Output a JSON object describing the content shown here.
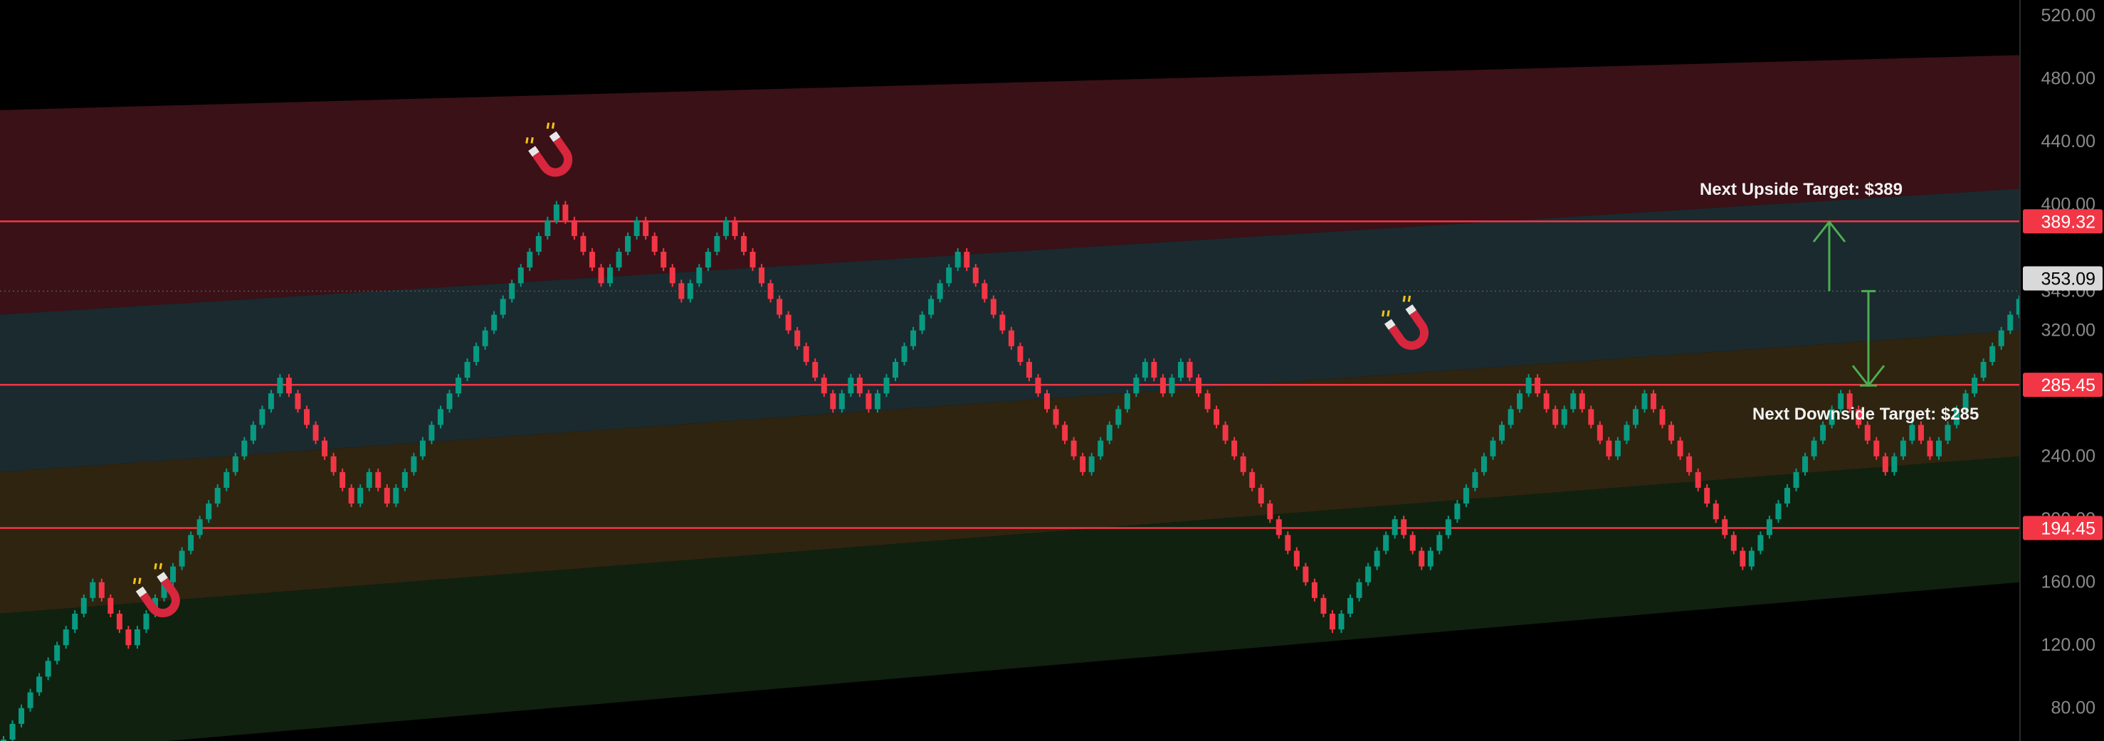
{
  "chart_data": {
    "type": "renko",
    "ylim": [
      60,
      530
    ],
    "y_ticks": [
      "80.00",
      "120.00",
      "160.00",
      "200.00",
      "240.00",
      "285.45",
      "320.00",
      "345.00",
      "400.00",
      "440.00",
      "480.00",
      "520.00"
    ],
    "brick_size": 10,
    "bricks": [
      {
        "dir": "up",
        "to": 60
      },
      {
        "dir": "up",
        "to": 70
      },
      {
        "dir": "up",
        "to": 80
      },
      {
        "dir": "up",
        "to": 90
      },
      {
        "dir": "up",
        "to": 100
      },
      {
        "dir": "up",
        "to": 110
      },
      {
        "dir": "up",
        "to": 120
      },
      {
        "dir": "up",
        "to": 130
      },
      {
        "dir": "up",
        "to": 140
      },
      {
        "dir": "up",
        "to": 150
      },
      {
        "dir": "up",
        "to": 160
      },
      {
        "dir": "down",
        "to": 150
      },
      {
        "dir": "down",
        "to": 140
      },
      {
        "dir": "down",
        "to": 130
      },
      {
        "dir": "down",
        "to": 120
      },
      {
        "dir": "up",
        "to": 130
      },
      {
        "dir": "up",
        "to": 140
      },
      {
        "dir": "up",
        "to": 150
      },
      {
        "dir": "up",
        "to": 160
      },
      {
        "dir": "up",
        "to": 170
      },
      {
        "dir": "up",
        "to": 180
      },
      {
        "dir": "up",
        "to": 190
      },
      {
        "dir": "up",
        "to": 200
      },
      {
        "dir": "up",
        "to": 210
      },
      {
        "dir": "up",
        "to": 220
      },
      {
        "dir": "up",
        "to": 230
      },
      {
        "dir": "up",
        "to": 240
      },
      {
        "dir": "up",
        "to": 250
      },
      {
        "dir": "up",
        "to": 260
      },
      {
        "dir": "up",
        "to": 270
      },
      {
        "dir": "up",
        "to": 280
      },
      {
        "dir": "up",
        "to": 290
      },
      {
        "dir": "down",
        "to": 280
      },
      {
        "dir": "down",
        "to": 270
      },
      {
        "dir": "down",
        "to": 260
      },
      {
        "dir": "down",
        "to": 250
      },
      {
        "dir": "down",
        "to": 240
      },
      {
        "dir": "down",
        "to": 230
      },
      {
        "dir": "down",
        "to": 220
      },
      {
        "dir": "down",
        "to": 210
      },
      {
        "dir": "up",
        "to": 220
      },
      {
        "dir": "up",
        "to": 230
      },
      {
        "dir": "down",
        "to": 220
      },
      {
        "dir": "down",
        "to": 210
      },
      {
        "dir": "up",
        "to": 220
      },
      {
        "dir": "up",
        "to": 230
      },
      {
        "dir": "up",
        "to": 240
      },
      {
        "dir": "up",
        "to": 250
      },
      {
        "dir": "up",
        "to": 260
      },
      {
        "dir": "up",
        "to": 270
      },
      {
        "dir": "up",
        "to": 280
      },
      {
        "dir": "up",
        "to": 290
      },
      {
        "dir": "up",
        "to": 300
      },
      {
        "dir": "up",
        "to": 310
      },
      {
        "dir": "up",
        "to": 320
      },
      {
        "dir": "up",
        "to": 330
      },
      {
        "dir": "up",
        "to": 340
      },
      {
        "dir": "up",
        "to": 350
      },
      {
        "dir": "up",
        "to": 360
      },
      {
        "dir": "up",
        "to": 370
      },
      {
        "dir": "up",
        "to": 380
      },
      {
        "dir": "up",
        "to": 390
      },
      {
        "dir": "up",
        "to": 400
      },
      {
        "dir": "down",
        "to": 390
      },
      {
        "dir": "down",
        "to": 380
      },
      {
        "dir": "down",
        "to": 370
      },
      {
        "dir": "down",
        "to": 360
      },
      {
        "dir": "down",
        "to": 350
      },
      {
        "dir": "up",
        "to": 360
      },
      {
        "dir": "up",
        "to": 370
      },
      {
        "dir": "up",
        "to": 380
      },
      {
        "dir": "up",
        "to": 390
      },
      {
        "dir": "down",
        "to": 380
      },
      {
        "dir": "down",
        "to": 370
      },
      {
        "dir": "down",
        "to": 360
      },
      {
        "dir": "down",
        "to": 350
      },
      {
        "dir": "down",
        "to": 340
      },
      {
        "dir": "up",
        "to": 350
      },
      {
        "dir": "up",
        "to": 360
      },
      {
        "dir": "up",
        "to": 370
      },
      {
        "dir": "up",
        "to": 380
      },
      {
        "dir": "up",
        "to": 390
      },
      {
        "dir": "down",
        "to": 380
      },
      {
        "dir": "down",
        "to": 370
      },
      {
        "dir": "down",
        "to": 360
      },
      {
        "dir": "down",
        "to": 350
      },
      {
        "dir": "down",
        "to": 340
      },
      {
        "dir": "down",
        "to": 330
      },
      {
        "dir": "down",
        "to": 320
      },
      {
        "dir": "down",
        "to": 310
      },
      {
        "dir": "down",
        "to": 300
      },
      {
        "dir": "down",
        "to": 290
      },
      {
        "dir": "down",
        "to": 280
      },
      {
        "dir": "down",
        "to": 270
      },
      {
        "dir": "up",
        "to": 280
      },
      {
        "dir": "up",
        "to": 290
      },
      {
        "dir": "down",
        "to": 280
      },
      {
        "dir": "down",
        "to": 270
      },
      {
        "dir": "up",
        "to": 280
      },
      {
        "dir": "up",
        "to": 290
      },
      {
        "dir": "up",
        "to": 300
      },
      {
        "dir": "up",
        "to": 310
      },
      {
        "dir": "up",
        "to": 320
      },
      {
        "dir": "up",
        "to": 330
      },
      {
        "dir": "up",
        "to": 340
      },
      {
        "dir": "up",
        "to": 350
      },
      {
        "dir": "up",
        "to": 360
      },
      {
        "dir": "up",
        "to": 370
      },
      {
        "dir": "down",
        "to": 360
      },
      {
        "dir": "down",
        "to": 350
      },
      {
        "dir": "down",
        "to": 340
      },
      {
        "dir": "down",
        "to": 330
      },
      {
        "dir": "down",
        "to": 320
      },
      {
        "dir": "down",
        "to": 310
      },
      {
        "dir": "down",
        "to": 300
      },
      {
        "dir": "down",
        "to": 290
      },
      {
        "dir": "down",
        "to": 280
      },
      {
        "dir": "down",
        "to": 270
      },
      {
        "dir": "down",
        "to": 260
      },
      {
        "dir": "down",
        "to": 250
      },
      {
        "dir": "down",
        "to": 240
      },
      {
        "dir": "down",
        "to": 230
      },
      {
        "dir": "up",
        "to": 240
      },
      {
        "dir": "up",
        "to": 250
      },
      {
        "dir": "up",
        "to": 260
      },
      {
        "dir": "up",
        "to": 270
      },
      {
        "dir": "up",
        "to": 280
      },
      {
        "dir": "up",
        "to": 290
      },
      {
        "dir": "up",
        "to": 300
      },
      {
        "dir": "down",
        "to": 290
      },
      {
        "dir": "down",
        "to": 280
      },
      {
        "dir": "up",
        "to": 290
      },
      {
        "dir": "up",
        "to": 300
      },
      {
        "dir": "down",
        "to": 290
      },
      {
        "dir": "down",
        "to": 280
      },
      {
        "dir": "down",
        "to": 270
      },
      {
        "dir": "down",
        "to": 260
      },
      {
        "dir": "down",
        "to": 250
      },
      {
        "dir": "down",
        "to": 240
      },
      {
        "dir": "down",
        "to": 230
      },
      {
        "dir": "down",
        "to": 220
      },
      {
        "dir": "down",
        "to": 210
      },
      {
        "dir": "down",
        "to": 200
      },
      {
        "dir": "down",
        "to": 190
      },
      {
        "dir": "down",
        "to": 180
      },
      {
        "dir": "down",
        "to": 170
      },
      {
        "dir": "down",
        "to": 160
      },
      {
        "dir": "down",
        "to": 150
      },
      {
        "dir": "down",
        "to": 140
      },
      {
        "dir": "down",
        "to": 130
      },
      {
        "dir": "up",
        "to": 140
      },
      {
        "dir": "up",
        "to": 150
      },
      {
        "dir": "up",
        "to": 160
      },
      {
        "dir": "up",
        "to": 170
      },
      {
        "dir": "up",
        "to": 180
      },
      {
        "dir": "up",
        "to": 190
      },
      {
        "dir": "up",
        "to": 200
      },
      {
        "dir": "down",
        "to": 190
      },
      {
        "dir": "down",
        "to": 180
      },
      {
        "dir": "down",
        "to": 170
      },
      {
        "dir": "up",
        "to": 180
      },
      {
        "dir": "up",
        "to": 190
      },
      {
        "dir": "up",
        "to": 200
      },
      {
        "dir": "up",
        "to": 210
      },
      {
        "dir": "up",
        "to": 220
      },
      {
        "dir": "up",
        "to": 230
      },
      {
        "dir": "up",
        "to": 240
      },
      {
        "dir": "up",
        "to": 250
      },
      {
        "dir": "up",
        "to": 260
      },
      {
        "dir": "up",
        "to": 270
      },
      {
        "dir": "up",
        "to": 280
      },
      {
        "dir": "up",
        "to": 290
      },
      {
        "dir": "down",
        "to": 280
      },
      {
        "dir": "down",
        "to": 270
      },
      {
        "dir": "down",
        "to": 260
      },
      {
        "dir": "up",
        "to": 270
      },
      {
        "dir": "up",
        "to": 280
      },
      {
        "dir": "down",
        "to": 270
      },
      {
        "dir": "down",
        "to": 260
      },
      {
        "dir": "down",
        "to": 250
      },
      {
        "dir": "down",
        "to": 240
      },
      {
        "dir": "up",
        "to": 250
      },
      {
        "dir": "up",
        "to": 260
      },
      {
        "dir": "up",
        "to": 270
      },
      {
        "dir": "up",
        "to": 280
      },
      {
        "dir": "down",
        "to": 270
      },
      {
        "dir": "down",
        "to": 260
      },
      {
        "dir": "down",
        "to": 250
      },
      {
        "dir": "down",
        "to": 240
      },
      {
        "dir": "down",
        "to": 230
      },
      {
        "dir": "down",
        "to": 220
      },
      {
        "dir": "down",
        "to": 210
      },
      {
        "dir": "down",
        "to": 200
      },
      {
        "dir": "down",
        "to": 190
      },
      {
        "dir": "down",
        "to": 180
      },
      {
        "dir": "down",
        "to": 170
      },
      {
        "dir": "up",
        "to": 180
      },
      {
        "dir": "up",
        "to": 190
      },
      {
        "dir": "up",
        "to": 200
      },
      {
        "dir": "up",
        "to": 210
      },
      {
        "dir": "up",
        "to": 220
      },
      {
        "dir": "up",
        "to": 230
      },
      {
        "dir": "up",
        "to": 240
      },
      {
        "dir": "up",
        "to": 250
      },
      {
        "dir": "up",
        "to": 260
      },
      {
        "dir": "up",
        "to": 270
      },
      {
        "dir": "up",
        "to": 280
      },
      {
        "dir": "down",
        "to": 270
      },
      {
        "dir": "down",
        "to": 260
      },
      {
        "dir": "down",
        "to": 250
      },
      {
        "dir": "down",
        "to": 240
      },
      {
        "dir": "down",
        "to": 230
      },
      {
        "dir": "up",
        "to": 240
      },
      {
        "dir": "up",
        "to": 250
      },
      {
        "dir": "up",
        "to": 260
      },
      {
        "dir": "down",
        "to": 250
      },
      {
        "dir": "down",
        "to": 240
      },
      {
        "dir": "up",
        "to": 250
      },
      {
        "dir": "up",
        "to": 260
      },
      {
        "dir": "up",
        "to": 270
      },
      {
        "dir": "up",
        "to": 280
      },
      {
        "dir": "up",
        "to": 290
      },
      {
        "dir": "up",
        "to": 300
      },
      {
        "dir": "up",
        "to": 310
      },
      {
        "dir": "up",
        "to": 320
      },
      {
        "dir": "up",
        "to": 330
      },
      {
        "dir": "up",
        "to": 340
      },
      {
        "dir": "up",
        "to": 350
      },
      {
        "dir": "up",
        "to": 360
      },
      {
        "dir": "up",
        "to": 370
      },
      {
        "dir": "up",
        "to": 380
      },
      {
        "dir": "up",
        "to": 390
      },
      {
        "dir": "up",
        "to": 400
      },
      {
        "dir": "up",
        "to": 410
      },
      {
        "dir": "up",
        "to": 420
      },
      {
        "dir": "up",
        "to": 430
      },
      {
        "dir": "up",
        "to": 440
      },
      {
        "dir": "up",
        "to": 450
      },
      {
        "dir": "up",
        "to": 460
      },
      {
        "dir": "up",
        "to": 470
      },
      {
        "dir": "down",
        "to": 460
      },
      {
        "dir": "down",
        "to": 450
      },
      {
        "dir": "down",
        "to": 440
      },
      {
        "dir": "down",
        "to": 430
      },
      {
        "dir": "down",
        "to": 420
      },
      {
        "dir": "down",
        "to": 410
      },
      {
        "dir": "down",
        "to": 400
      },
      {
        "dir": "up",
        "to": 410
      },
      {
        "dir": "up",
        "to": 420
      },
      {
        "dir": "up",
        "to": 430
      },
      {
        "dir": "up",
        "to": 440
      },
      {
        "dir": "down",
        "to": 430
      },
      {
        "dir": "down",
        "to": 420
      },
      {
        "dir": "down",
        "to": 410
      },
      {
        "dir": "down",
        "to": 400
      },
      {
        "dir": "down",
        "to": 390
      },
      {
        "dir": "down",
        "to": 380
      },
      {
        "dir": "down",
        "to": 370
      },
      {
        "dir": "down",
        "to": 360
      },
      {
        "dir": "down",
        "to": 350
      },
      {
        "dir": "down",
        "to": 340
      },
      {
        "dir": "up",
        "to": 350
      },
      {
        "dir": "up",
        "to": 360
      },
      {
        "dir": "down",
        "to": 350
      },
      {
        "dir": "down",
        "to": 340
      },
      {
        "dir": "down",
        "to": 330
      },
      {
        "dir": "down",
        "to": 320
      },
      {
        "dir": "down",
        "to": 310
      },
      {
        "dir": "down",
        "to": 300
      },
      {
        "dir": "down",
        "to": 290
      },
      {
        "dir": "down",
        "to": 280
      },
      {
        "dir": "down",
        "to": 270
      },
      {
        "dir": "down",
        "to": 260
      },
      {
        "dir": "down",
        "to": 250
      },
      {
        "dir": "down",
        "to": 240
      },
      {
        "dir": "up",
        "to": 250
      },
      {
        "dir": "up",
        "to": 260
      },
      {
        "dir": "up",
        "to": 270
      },
      {
        "dir": "up",
        "to": 280
      },
      {
        "dir": "up",
        "to": 290
      },
      {
        "dir": "down",
        "to": 280
      },
      {
        "dir": "down",
        "to": 270
      },
      {
        "dir": "down",
        "to": 260
      },
      {
        "dir": "down",
        "to": 250
      },
      {
        "dir": "down",
        "to": 240
      },
      {
        "dir": "up",
        "to": 250
      },
      {
        "dir": "up",
        "to": 260
      },
      {
        "dir": "down",
        "to": 250
      },
      {
        "dir": "down",
        "to": 240
      },
      {
        "dir": "up",
        "to": 250
      },
      {
        "dir": "up",
        "to": 260
      },
      {
        "dir": "down",
        "to": 250
      },
      {
        "dir": "down",
        "to": 240
      },
      {
        "dir": "up",
        "to": 250
      },
      {
        "dir": "up",
        "to": 260
      },
      {
        "dir": "up",
        "to": 270
      },
      {
        "dir": "up",
        "to": 280
      },
      {
        "dir": "up",
        "to": 290
      },
      {
        "dir": "up",
        "to": 300
      },
      {
        "dir": "up",
        "to": 310
      },
      {
        "dir": "up",
        "to": 320
      },
      {
        "dir": "up",
        "to": 330
      },
      {
        "dir": "up",
        "to": 340
      },
      {
        "dir": "up",
        "to": 350
      },
      {
        "dir": "current",
        "to": 353.09
      }
    ],
    "horizontal_levels": [
      {
        "value": 389.32,
        "label": "389.32",
        "color": "#f23645"
      },
      {
        "value": 285.45,
        "label": "285.45",
        "color": "#f23645"
      },
      {
        "value": 194.45,
        "label": "194.45",
        "color": "#f23645"
      }
    ],
    "current_price": {
      "value": 353.09,
      "label": "353.09"
    },
    "channel": {
      "bands": [
        {
          "name": "red",
          "color": "#3a1117",
          "from": [
            330,
            460
          ],
          "to": [
            410,
            495
          ]
        },
        {
          "name": "teal",
          "color": "#1b2a2f",
          "from": [
            230,
            330
          ],
          "to": [
            320,
            410
          ]
        },
        {
          "name": "amber",
          "color": "#2e2410",
          "from": [
            140,
            230
          ],
          "to": [
            240,
            320
          ]
        },
        {
          "name": "green",
          "color": "#10210f",
          "from": [
            50,
            140
          ],
          "to": [
            160,
            240
          ]
        }
      ]
    },
    "annotations": [
      {
        "text": "Next Upside Target: $389",
        "target": 389,
        "from": 345
      },
      {
        "text": "Next Downside Target: $285",
        "target": 285,
        "from": 345
      }
    ],
    "magnets": [
      {
        "name": "magnet-icon-top-left",
        "brick": 62,
        "price": 430
      },
      {
        "name": "magnet-icon-bottom-left",
        "brick": 18,
        "price": 150
      },
      {
        "name": "magnet-icon-center",
        "brick": 158,
        "price": 320
      }
    ],
    "colors": {
      "up": "#089981",
      "down": "#f23645",
      "axis_border": "#2a2a2a",
      "current_bg": "#d9d9d9"
    }
  }
}
